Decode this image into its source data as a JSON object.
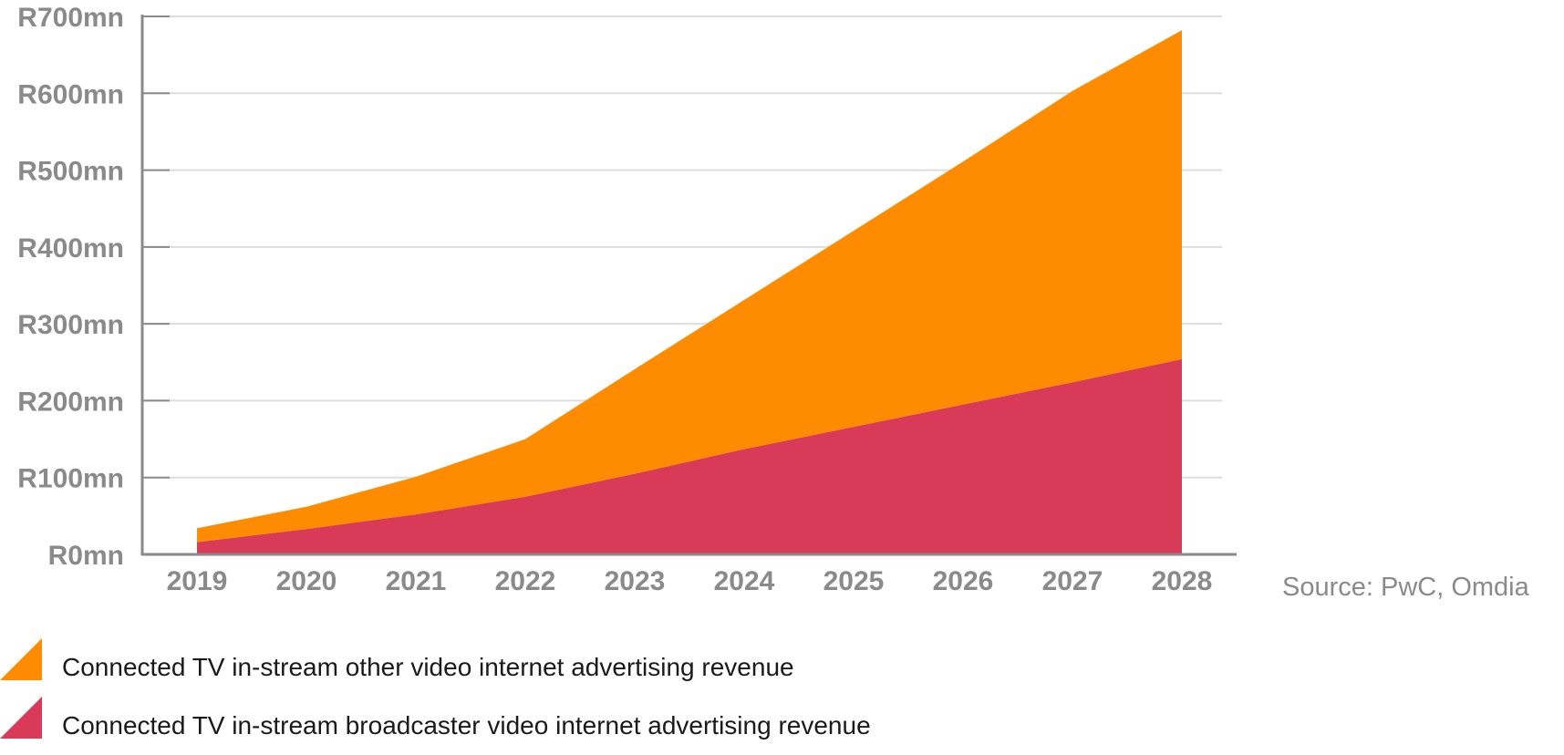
{
  "chart_data": {
    "type": "area",
    "stacked": true,
    "x": [
      "2019",
      "2020",
      "2021",
      "2022",
      "2023",
      "2024",
      "2025",
      "2026",
      "2027",
      "2028"
    ],
    "y_ticks": [
      "R0mn",
      "R100mn",
      "R200mn",
      "R300mn",
      "R400mn",
      "R500mn",
      "R600mn",
      "R700mn"
    ],
    "ylim": [
      0,
      700
    ],
    "grid": true,
    "legend_position": "bottom-left",
    "series": [
      {
        "name": "Connected TV in-stream broadcaster video internet advertising revenue",
        "color": "#d93a58",
        "values": [
          16,
          33,
          52,
          75,
          105,
          137,
          166,
          195,
          224,
          254
        ]
      },
      {
        "name": "Connected TV in-stream other video internet advertising revenue",
        "color": "#ff8b00",
        "values": [
          18,
          29,
          49,
          75,
          136,
          194,
          255,
          316,
          379,
          428
        ]
      }
    ]
  },
  "source": "Source: PwC, Omdia",
  "colors": {
    "axis": "#8a8a8a",
    "grid": "#dddddd",
    "tick_text": "#8a8a8a"
  }
}
